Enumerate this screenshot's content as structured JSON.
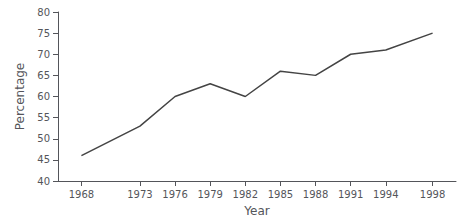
{
  "chart_data": {
    "type": "line",
    "x": [
      1968,
      1973,
      1976,
      1979,
      1982,
      1985,
      1988,
      1991,
      1994,
      1998
    ],
    "values": [
      46,
      53,
      60,
      63,
      60,
      66,
      65,
      70,
      71,
      75
    ],
    "xlabel": "Year",
    "ylabel": "Percentage",
    "color": "#444444",
    "xlim": [
      1966,
      2000
    ],
    "ylim": [
      40,
      80
    ],
    "xticks": [
      1968,
      1973,
      1976,
      1979,
      1982,
      1985,
      1988,
      1991,
      1994,
      1998
    ],
    "yticks": [
      40,
      45,
      50,
      55,
      60,
      65,
      70,
      75,
      80
    ],
    "grid": false
  }
}
